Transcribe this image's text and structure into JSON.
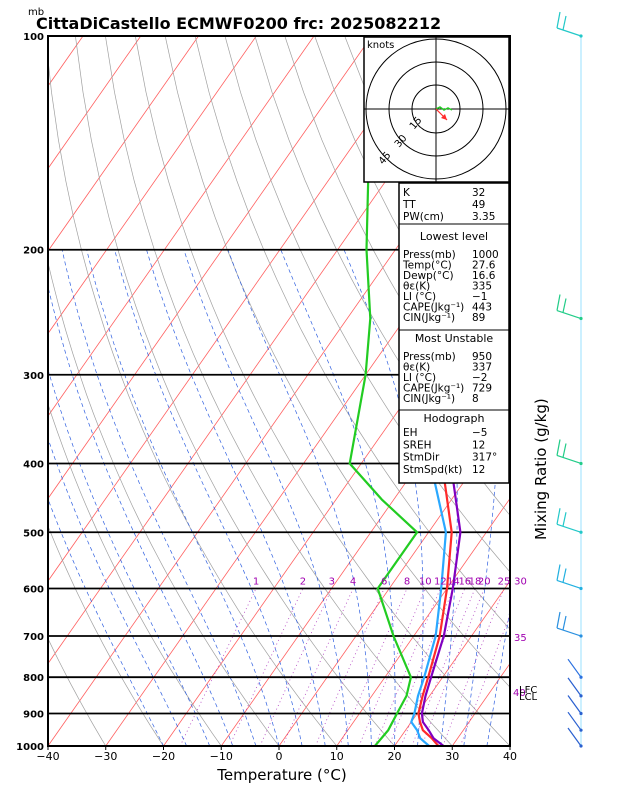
{
  "header": {
    "unit_mb": "mb",
    "title": "CittaDiCastello ECMWF0200 frc: 2025082212"
  },
  "chart_data": {
    "type": "line",
    "xlabel": "Temperature (°C)",
    "ylabel_right": "Mixing Ratio (g/kg)",
    "x_ticks": [
      "−40",
      "−30",
      "−20",
      "−10",
      "0",
      "10",
      "20",
      "30",
      "40"
    ],
    "p_ticks": [
      "100",
      "200",
      "300",
      "400",
      "500",
      "600",
      "700",
      "800",
      "900",
      "1000"
    ],
    "xlim": [
      -40,
      40
    ],
    "ylim": [
      1000,
      100
    ],
    "mixing_ratio_labels": [
      "1",
      "2",
      "3",
      "4",
      "6",
      "8",
      "10",
      "12",
      "14",
      "16",
      "18",
      "20",
      "25",
      "30"
    ],
    "extra_marks": {
      "mr_35": "35",
      "mr_40": "40",
      "lcl": "LCL",
      "lfc": "LFC"
    },
    "series": [
      {
        "color": "#ff2a2a",
        "points": [
          [
            1000,
            27.6
          ],
          [
            975,
            25.5
          ],
          [
            950,
            23.0
          ],
          [
            925,
            21.5
          ],
          [
            900,
            20.2
          ],
          [
            850,
            18.8
          ],
          [
            800,
            17.5
          ],
          [
            700,
            14.5
          ],
          [
            600,
            10.0
          ],
          [
            500,
            4.0
          ],
          [
            400,
            -6.0
          ],
          [
            300,
            -17.0
          ],
          [
            250,
            -24.0
          ],
          [
            200,
            -33.0
          ],
          [
            150,
            -46.0
          ],
          [
            100,
            -64.0
          ]
        ]
      },
      {
        "color": "#2aa8ff",
        "points": [
          [
            1000,
            26.0
          ],
          [
            975,
            23.5
          ],
          [
            950,
            22.0
          ],
          [
            925,
            20.0
          ],
          [
            900,
            19.5
          ],
          [
            850,
            18.0
          ],
          [
            800,
            16.8
          ],
          [
            700,
            13.8
          ],
          [
            600,
            9.0
          ],
          [
            500,
            3.0
          ],
          [
            400,
            -8.0
          ],
          [
            300,
            -20.0
          ],
          [
            250,
            -27.0
          ],
          [
            200,
            -36.0
          ],
          [
            150,
            -48.0
          ],
          [
            100,
            -66.0
          ]
        ]
      },
      {
        "color": "#8000c0",
        "points": [
          [
            1000,
            28.5
          ],
          [
            975,
            25.8
          ],
          [
            950,
            24.0
          ],
          [
            925,
            22.0
          ],
          [
            900,
            20.8
          ],
          [
            850,
            19.3
          ],
          [
            800,
            18.0
          ],
          [
            700,
            15.2
          ],
          [
            600,
            11.0
          ],
          [
            500,
            5.5
          ],
          [
            400,
            -4.5
          ],
          [
            300,
            -16.0
          ],
          [
            250,
            -23.5
          ],
          [
            200,
            -32.0
          ],
          [
            150,
            -45.0
          ],
          [
            100,
            -63.0
          ]
        ]
      },
      {
        "color": "#22cc22",
        "points": [
          [
            1000,
            16.6
          ],
          [
            950,
            17.0
          ],
          [
            900,
            16.5
          ],
          [
            850,
            16.0
          ],
          [
            800,
            14.5
          ],
          [
            700,
            6.5
          ],
          [
            600,
            -2.0
          ],
          [
            500,
            -2.0
          ],
          [
            450,
            -12.0
          ],
          [
            400,
            -22.0
          ],
          [
            300,
            -30.0
          ],
          [
            250,
            -36.0
          ],
          [
            200,
            -45.0
          ],
          [
            100,
            -70.0
          ]
        ]
      }
    ]
  },
  "hodograph": {
    "unit": "knots",
    "ring_labels": [
      "15",
      "30",
      "45"
    ]
  },
  "indices": [
    {
      "label": "K",
      "value": "32"
    },
    {
      "label": "TT",
      "value": "49"
    },
    {
      "label": "PW(cm)",
      "value": "3.35"
    }
  ],
  "lowest_level": {
    "header": "Lowest level",
    "rows": [
      {
        "label": "Press(mb)",
        "value": "1000"
      },
      {
        "label": "Temp(°C)",
        "value": "27.6"
      },
      {
        "label": "Dewp(°C)",
        "value": "16.6"
      },
      {
        "label": "θε(K)",
        "value": "335"
      },
      {
        "label": "LI (°C)",
        "value": "−1"
      },
      {
        "label": "CAPE(Jkg⁻¹)",
        "value": "443"
      },
      {
        "label": "CIN(Jkg⁻¹)",
        "value": "89"
      }
    ]
  },
  "most_unstable": {
    "header": "Most Unstable",
    "rows": [
      {
        "label": "Press(mb)",
        "value": "950"
      },
      {
        "label": "θε(K)",
        "value": "337"
      },
      {
        "label": "LI (°C)",
        "value": "−2"
      },
      {
        "label": "CAPE(Jkg⁻¹)",
        "value": "729"
      },
      {
        "label": "CIN(Jkg⁻¹)",
        "value": "8"
      }
    ]
  },
  "hodograph_box": {
    "header": "Hodograph",
    "rows": [
      {
        "label": "EH",
        "value": "−5"
      },
      {
        "label": "SREH",
        "value": "12"
      },
      {
        "label": "StmDir",
        "value": "317°"
      },
      {
        "label": "StmSpd(kt)",
        "value": "12"
      }
    ]
  }
}
